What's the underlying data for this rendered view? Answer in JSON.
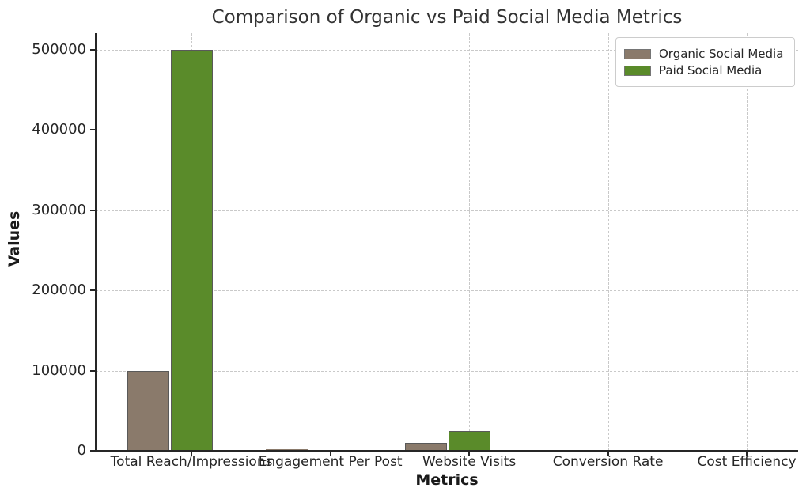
{
  "chart_data": {
    "type": "bar",
    "title": "Comparison of Organic vs Paid Social Media Metrics",
    "xlabel": "Metrics",
    "ylabel": "Values",
    "categories": [
      "Total Reach/Impressions",
      "Engagement Per Post",
      "Website Visits",
      "Conversion Rate",
      "Cost Efficiency"
    ],
    "series": [
      {
        "name": "Organic Social Media",
        "color": "#8a7a6b",
        "values": [
          100000,
          1500,
          10000,
          2.5,
          10
        ]
      },
      {
        "name": "Paid Social Media",
        "color": "#5a8b2a",
        "values": [
          500000,
          800,
          25000,
          5,
          50
        ]
      }
    ],
    "yticks": [
      0,
      100000,
      200000,
      300000,
      400000,
      500000
    ],
    "ylim": [
      0,
      525000
    ],
    "grid": true,
    "legend_position": "upper right",
    "colors": {
      "bar_edge": "#595959",
      "grid": "#c9c9c9",
      "spine": "#262626",
      "title_text": "#333333",
      "tick_text": "#262626"
    }
  }
}
